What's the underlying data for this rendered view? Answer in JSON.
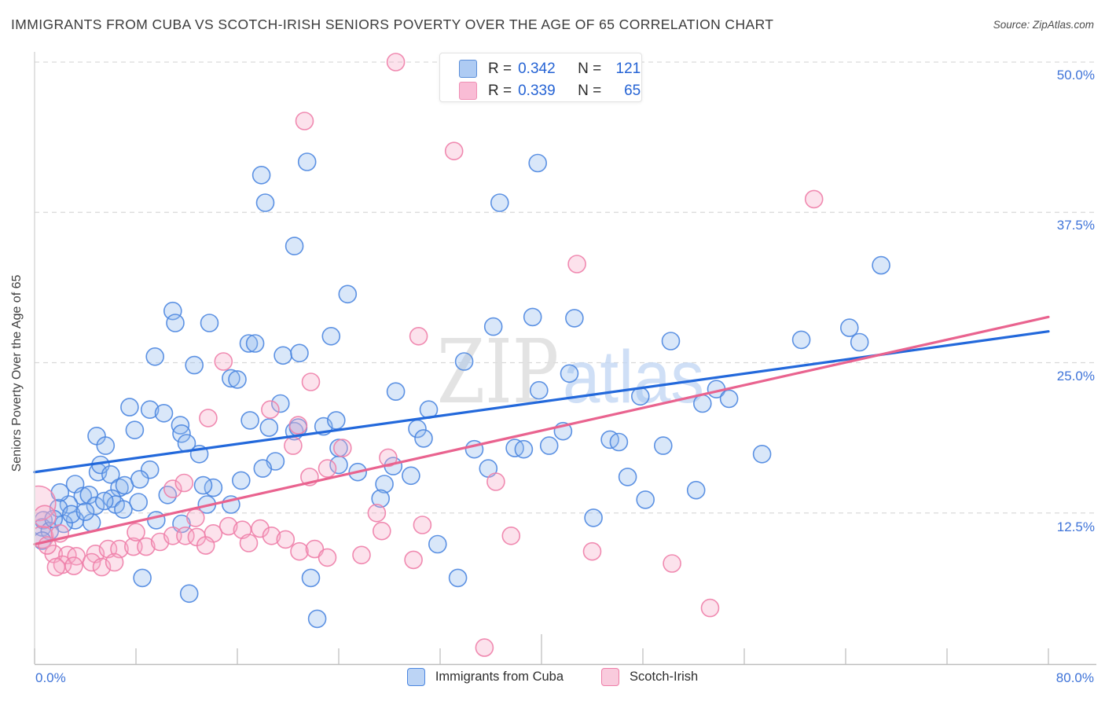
{
  "header": {
    "title": "IMMIGRANTS FROM CUBA VS SCOTCH-IRISH SENIORS POVERTY OVER THE AGE OF 65 CORRELATION CHART",
    "source": "Source: ZipAtlas.com"
  },
  "legend": {
    "series": [
      {
        "r_label": "R =",
        "r": "0.342",
        "n_label": "N =",
        "n": "121"
      },
      {
        "r_label": "R =",
        "r": "0.339",
        "n_label": "N =",
        "n": "65"
      }
    ]
  },
  "axis": {
    "y_title": "Seniors Poverty Over the Age of 65",
    "y_ticks": [
      "50.0%",
      "37.5%",
      "25.0%",
      "12.5%"
    ],
    "x_min_label": "0.0%",
    "x_max_label": "80.0%"
  },
  "legend_bottom": {
    "items": [
      {
        "label": "Immigrants from Cuba"
      },
      {
        "label": "Scotch-Irish"
      }
    ]
  },
  "watermark": {
    "zip": "ZIP",
    "atlas": "atlas"
  },
  "colors": {
    "cuba_stroke": "#4b86e0",
    "cuba_fill": "#8fb8ee",
    "cuba_trend": "#2268db",
    "scotch_stroke": "#ee7ea8",
    "scotch_fill": "#f5a9c6",
    "scotch_trend": "#e9638f",
    "grid": "#d9d9d9",
    "axis_line": "#bdbdbd",
    "tick_label_blue": "#3e73d8",
    "watermark_zip": "#dedede",
    "watermark_atlas": "#c3d7f4"
  },
  "chart_data": {
    "type": "scatter",
    "title": "Immigrants from Cuba vs Scotch-Irish Seniors Poverty Over the Age of 65",
    "xlabel": "",
    "ylabel": "Seniors Poverty Over the Age of 65",
    "x_range": [
      0,
      80
    ],
    "y_range": [
      0,
      50
    ],
    "grid_y_values": [
      12.5,
      25,
      37.5,
      50
    ],
    "x_tick_step": 8,
    "legend_position": "top-center",
    "series": [
      {
        "name": "Immigrants from Cuba",
        "r": 0.342,
        "n": 121,
        "points": [
          [
            21.5,
            41.7
          ],
          [
            17.9,
            40.6
          ],
          [
            18.2,
            38.3
          ],
          [
            20.5,
            34.7
          ],
          [
            39.7,
            41.6
          ],
          [
            36.7,
            38.3
          ],
          [
            66.8,
            33.1
          ],
          [
            24.7,
            30.7
          ],
          [
            60.5,
            26.9
          ],
          [
            64.3,
            27.9
          ],
          [
            65.1,
            26.7
          ],
          [
            39.3,
            28.8
          ],
          [
            42.6,
            28.7
          ],
          [
            36.2,
            28.0
          ],
          [
            50.2,
            26.8
          ],
          [
            33.9,
            25.1
          ],
          [
            42.2,
            24.1
          ],
          [
            10.9,
            29.3
          ],
          [
            11.1,
            28.3
          ],
          [
            13.8,
            28.3
          ],
          [
            16.9,
            26.6
          ],
          [
            17.4,
            26.6
          ],
          [
            19.6,
            25.6
          ],
          [
            20.9,
            25.8
          ],
          [
            23.4,
            27.2
          ],
          [
            9.5,
            25.5
          ],
          [
            12.6,
            24.8
          ],
          [
            15.5,
            23.7
          ],
          [
            16.0,
            23.6
          ],
          [
            28.5,
            22.6
          ],
          [
            39.8,
            22.7
          ],
          [
            47.8,
            22.2
          ],
          [
            53.8,
            22.8
          ],
          [
            54.8,
            22.0
          ],
          [
            31.1,
            21.1
          ],
          [
            52.7,
            21.6
          ],
          [
            7.5,
            21.3
          ],
          [
            9.1,
            21.1
          ],
          [
            10.2,
            20.8
          ],
          [
            19.4,
            21.6
          ],
          [
            17.0,
            20.2
          ],
          [
            18.5,
            19.6
          ],
          [
            4.9,
            18.9
          ],
          [
            7.9,
            19.4
          ],
          [
            11.5,
            19.8
          ],
          [
            11.6,
            19.1
          ],
          [
            5.6,
            18.1
          ],
          [
            20.5,
            19.3
          ],
          [
            20.8,
            19.6
          ],
          [
            22.8,
            19.7
          ],
          [
            23.8,
            20.2
          ],
          [
            24.0,
            17.9
          ],
          [
            12.0,
            18.3
          ],
          [
            13.0,
            17.4
          ],
          [
            30.2,
            19.5
          ],
          [
            30.7,
            18.7
          ],
          [
            41.7,
            19.3
          ],
          [
            34.7,
            17.8
          ],
          [
            37.9,
            17.9
          ],
          [
            38.6,
            17.8
          ],
          [
            40.6,
            18.1
          ],
          [
            45.4,
            18.6
          ],
          [
            46.1,
            18.4
          ],
          [
            49.6,
            18.1
          ],
          [
            57.4,
            17.4
          ],
          [
            28.3,
            16.4
          ],
          [
            29.7,
            15.6
          ],
          [
            27.6,
            14.9
          ],
          [
            27.3,
            13.7
          ],
          [
            35.8,
            16.2
          ],
          [
            44.1,
            12.1
          ],
          [
            46.8,
            15.5
          ],
          [
            48.2,
            13.6
          ],
          [
            52.2,
            14.4
          ],
          [
            31.8,
            9.9
          ],
          [
            33.4,
            7.1
          ],
          [
            3.2,
            14.9
          ],
          [
            3.8,
            13.9
          ],
          [
            4.3,
            14.0
          ],
          [
            2.7,
            13.2
          ],
          [
            1.9,
            12.9
          ],
          [
            3.2,
            11.9
          ],
          [
            2.3,
            11.6
          ],
          [
            0.7,
            11.9
          ],
          [
            0.6,
            11.3
          ],
          [
            1.2,
            11.0
          ],
          [
            0.6,
            10.2
          ],
          [
            5.0,
            15.9
          ],
          [
            5.2,
            16.5
          ],
          [
            6.0,
            15.7
          ],
          [
            6.7,
            14.6
          ],
          [
            7.1,
            14.8
          ],
          [
            4.8,
            13.1
          ],
          [
            4.5,
            11.7
          ],
          [
            9.1,
            16.1
          ],
          [
            8.3,
            15.3
          ],
          [
            6.1,
            13.7
          ],
          [
            8.2,
            13.4
          ],
          [
            6.4,
            13.2
          ],
          [
            14.1,
            14.6
          ],
          [
            13.6,
            13.2
          ],
          [
            13.3,
            14.8
          ],
          [
            15.5,
            13.2
          ],
          [
            9.6,
            11.9
          ],
          [
            11.6,
            11.6
          ],
          [
            25.5,
            15.9
          ],
          [
            24.0,
            16.5
          ],
          [
            19.0,
            16.8
          ],
          [
            8.5,
            7.1
          ],
          [
            12.2,
            5.8
          ],
          [
            21.8,
            7.1
          ],
          [
            22.3,
            3.7
          ],
          [
            2.0,
            14.2
          ],
          [
            2.9,
            12.4
          ],
          [
            4.0,
            12.6
          ],
          [
            5.5,
            13.5
          ],
          [
            1.5,
            12.0
          ],
          [
            7.0,
            12.8
          ],
          [
            10.5,
            14.0
          ],
          [
            16.3,
            15.2
          ],
          [
            18.0,
            16.2
          ]
        ]
      },
      {
        "name": "Scotch-Irish",
        "r": 0.339,
        "n": 65,
        "points": [
          [
            21.3,
            45.1
          ],
          [
            28.5,
            50.0
          ],
          [
            33.1,
            42.6
          ],
          [
            61.5,
            38.6
          ],
          [
            42.8,
            33.2
          ],
          [
            30.3,
            27.2
          ],
          [
            14.9,
            25.1
          ],
          [
            21.8,
            23.4
          ],
          [
            13.7,
            20.4
          ],
          [
            18.6,
            21.1
          ],
          [
            20.8,
            19.8
          ],
          [
            20.4,
            18.1
          ],
          [
            24.3,
            17.9
          ],
          [
            27.9,
            17.1
          ],
          [
            27.0,
            12.5
          ],
          [
            27.4,
            11.0
          ],
          [
            30.6,
            11.5
          ],
          [
            36.4,
            15.1
          ],
          [
            29.9,
            8.6
          ],
          [
            37.6,
            10.6
          ],
          [
            44.0,
            9.3
          ],
          [
            50.3,
            8.3
          ],
          [
            53.3,
            4.6
          ],
          [
            35.5,
            1.3
          ],
          [
            21.7,
            15.5
          ],
          [
            23.1,
            16.2
          ],
          [
            10.9,
            14.5
          ],
          [
            11.8,
            15.0
          ],
          [
            12.7,
            12.1
          ],
          [
            0.3,
            13.3,
            22
          ],
          [
            1.5,
            9.1
          ],
          [
            2.6,
            9.0
          ],
          [
            2.2,
            8.2
          ],
          [
            3.3,
            8.9
          ],
          [
            4.8,
            9.1
          ],
          [
            5.8,
            9.5
          ],
          [
            4.5,
            8.4
          ],
          [
            3.1,
            8.1
          ],
          [
            1.7,
            8.0
          ],
          [
            6.7,
            9.5
          ],
          [
            7.8,
            9.7
          ],
          [
            8.8,
            9.7
          ],
          [
            9.9,
            10.1
          ],
          [
            10.9,
            10.6
          ],
          [
            11.9,
            10.6
          ],
          [
            12.8,
            10.5
          ],
          [
            14.1,
            10.8
          ],
          [
            15.3,
            11.4
          ],
          [
            16.4,
            11.1
          ],
          [
            17.8,
            11.2
          ],
          [
            18.7,
            10.6
          ],
          [
            19.8,
            10.3
          ],
          [
            20.9,
            9.3
          ],
          [
            22.1,
            9.5
          ],
          [
            23.1,
            8.8
          ],
          [
            0.6,
            10.5,
            14
          ],
          [
            1.0,
            9.8
          ],
          [
            2.0,
            10.8
          ],
          [
            0.8,
            12.2,
            14
          ],
          [
            5.3,
            8.0
          ],
          [
            6.3,
            8.4
          ],
          [
            13.5,
            9.8
          ],
          [
            16.9,
            10.0
          ],
          [
            25.8,
            9.0
          ],
          [
            8.0,
            10.9
          ]
        ]
      }
    ],
    "trendlines": [
      {
        "series": "Immigrants from Cuba",
        "x1": 0,
        "y1": 15.9,
        "x2": 80,
        "y2": 27.6
      },
      {
        "series": "Scotch-Irish",
        "x1": 0,
        "y1": 9.9,
        "x2": 80,
        "y2": 28.8
      }
    ]
  }
}
